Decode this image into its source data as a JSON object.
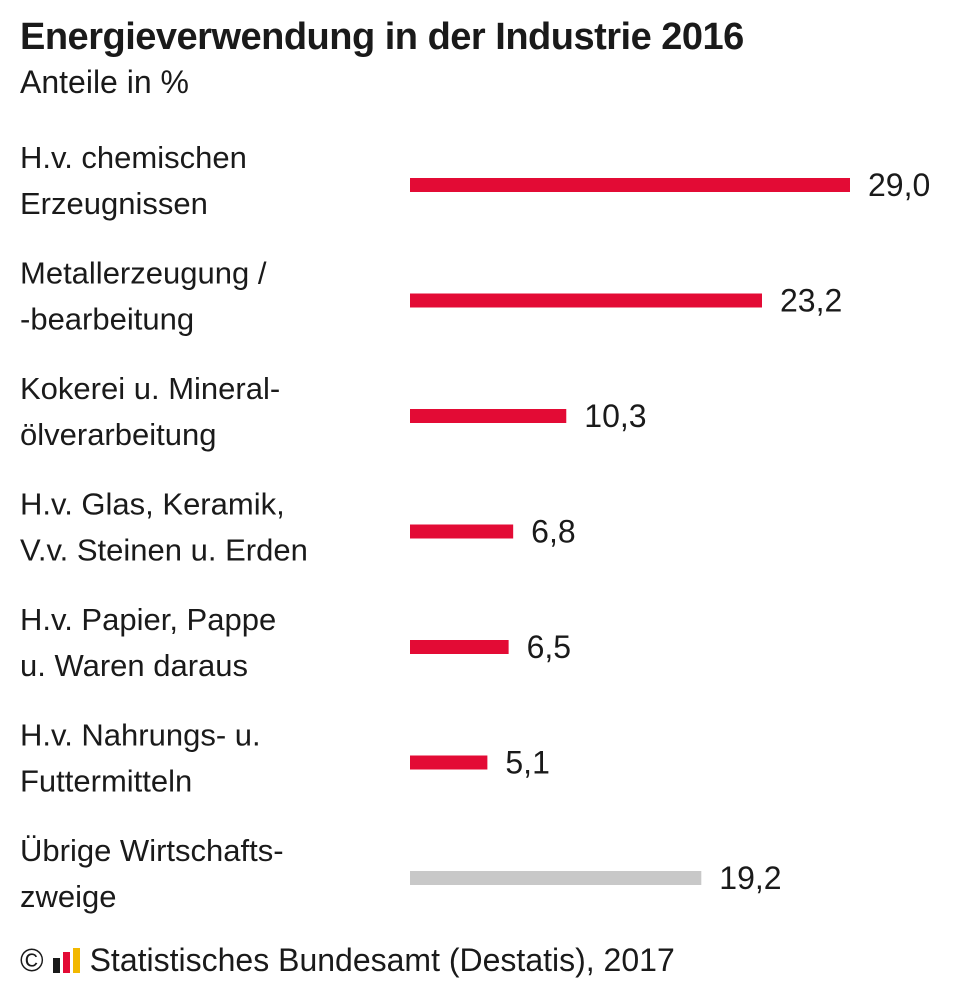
{
  "chart_data": {
    "type": "bar",
    "orientation": "horizontal",
    "title": "Energieverwendung in der Industrie 2016",
    "subtitle": "Anteile in %",
    "categories": [
      [
        "H.v. chemischen",
        "Erzeugnissen"
      ],
      [
        "Metallerzeugung /",
        "-bearbeitung"
      ],
      [
        "Kokerei u. Mineral-",
        "ölverarbeitung"
      ],
      [
        "H.v. Glas, Keramik,",
        "V.v. Steinen u. Erden"
      ],
      [
        "H.v. Papier, Pappe",
        "u. Waren daraus"
      ],
      [
        "H.v. Nahrungs- u.",
        "Futtermitteln"
      ],
      [
        "Übrige Wirtschafts-",
        "zweige"
      ]
    ],
    "values": [
      29.0,
      23.2,
      10.3,
      6.8,
      6.5,
      5.1,
      19.2
    ],
    "value_labels": [
      "29,0",
      "23,2",
      "10,3",
      "6,8",
      "6,5",
      "5,1",
      "19,2"
    ],
    "bar_colors": [
      "#e30b35",
      "#e30b35",
      "#e30b35",
      "#e30b35",
      "#e30b35",
      "#e30b35",
      "#c8c8c8"
    ],
    "xlim": [
      0,
      29
    ],
    "grid": false,
    "legend": "none"
  },
  "footer": {
    "copyright": "©",
    "logo_icon": "destatis-logo-icon",
    "source": "Statistisches Bundesamt (Destatis), 2017"
  }
}
